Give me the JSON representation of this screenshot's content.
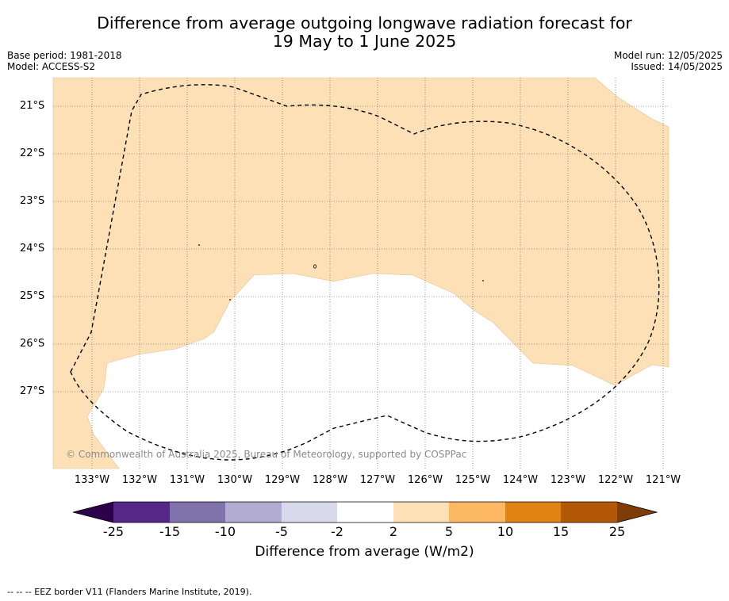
{
  "title": {
    "line1": "Difference from average outgoing longwave radiation forecast for",
    "line2": "19 May to 1 June 2025"
  },
  "meta": {
    "base_period": "Base period: 1981-2018",
    "model": "Model: ACCESS-S2",
    "model_run": "Model run: 12/05/2025",
    "issued": "Issued: 14/05/2025"
  },
  "map": {
    "lat_labels": [
      "21°S",
      "22°S",
      "23°S",
      "24°S",
      "25°S",
      "26°S",
      "27°S"
    ],
    "lon_labels": [
      "133°W",
      "132°W",
      "131°W",
      "130°W",
      "129°W",
      "128°W",
      "127°W",
      "126°W",
      "125°W",
      "124°W",
      "123°W",
      "122°W",
      "121°W"
    ],
    "copyright": "© Commonwealth of Australia 2025, Bureau of Meteorology, supported by COSPPac",
    "eez_outline": "dashed",
    "anomaly_fill_color": "#fde0b6",
    "neutral_fill_color": "#ffffff"
  },
  "colorbar": {
    "ticks": [
      "-25",
      "-15",
      "-10",
      "-5",
      "-2",
      "2",
      "5",
      "10",
      "15",
      "25"
    ],
    "colors": [
      "#2d004b",
      "#542788",
      "#8073ac",
      "#b2abd2",
      "#d8daeb",
      "#ffffff",
      "#fee0b6",
      "#fdb863",
      "#e08214",
      "#b35806",
      "#7f3b08"
    ],
    "label": "Difference from average (W/m2)"
  },
  "footnote": "--  --  -- EEZ border V11 (Flanders Marine Institute, 2019)."
}
